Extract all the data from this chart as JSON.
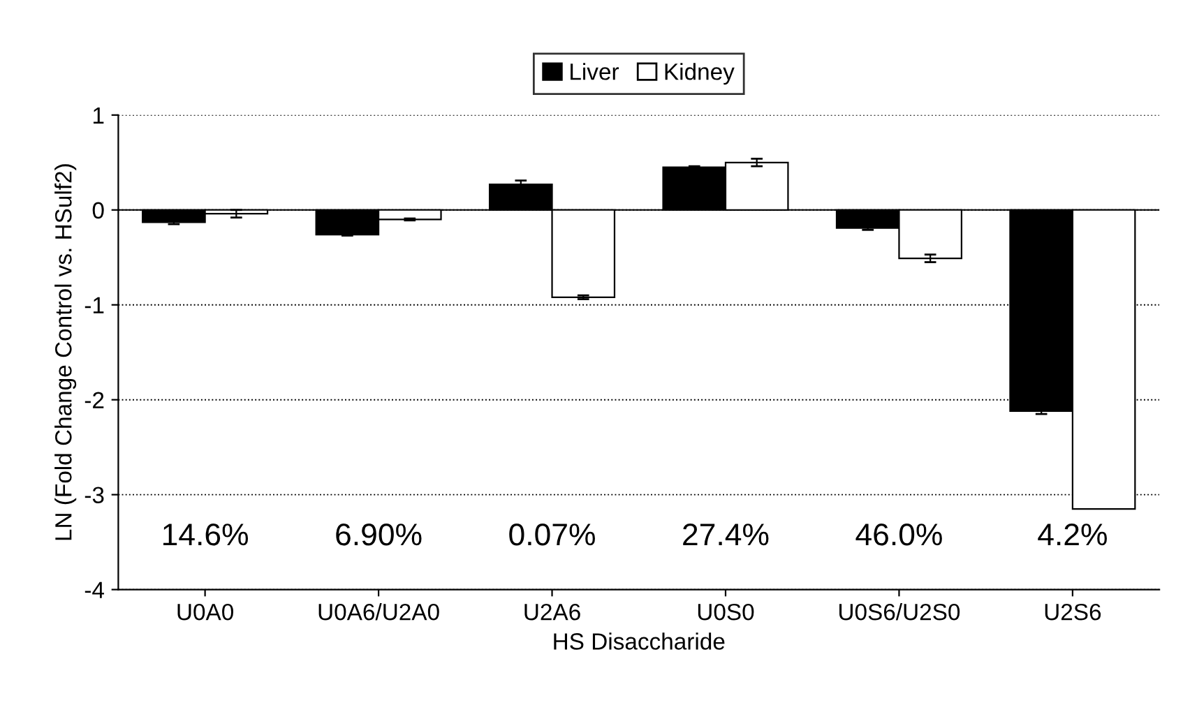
{
  "chart_data": {
    "type": "bar",
    "xlabel": "HS Disaccharide",
    "ylabel": "LN (Fold Change Control vs. HSulf2)",
    "categories": [
      "U0A0",
      "U0A6/U2A0",
      "U2A6",
      "U0S0",
      "U0S6/U2S0",
      "U2S6"
    ],
    "series": [
      {
        "name": "Liver",
        "color": "#000000",
        "values": [
          -0.13,
          -0.26,
          0.27,
          0.45,
          -0.19,
          -2.12
        ],
        "errors": [
          0.02,
          0.01,
          0.04,
          0.01,
          0.02,
          0.03
        ]
      },
      {
        "name": "Kidney",
        "color": "#ffffff",
        "values": [
          -0.04,
          -0.1,
          -0.92,
          0.5,
          -0.51,
          -3.15
        ],
        "errors": [
          0.04,
          0.01,
          0.02,
          0.04,
          0.04,
          null
        ]
      }
    ],
    "ylim": [
      -4,
      1
    ],
    "yticks": [
      -4,
      -3,
      -2,
      -1,
      0,
      1
    ],
    "grid": "y",
    "line_style": "dotted",
    "legend": "top",
    "ref_lines": [
      {
        "axis": "y",
        "value": 0,
        "color": "#000000",
        "line_style": "solid"
      }
    ],
    "annotations": [
      "14.6%",
      "6.90%",
      "0.07%",
      "27.4%",
      "46.0%",
      "4.2%"
    ]
  }
}
